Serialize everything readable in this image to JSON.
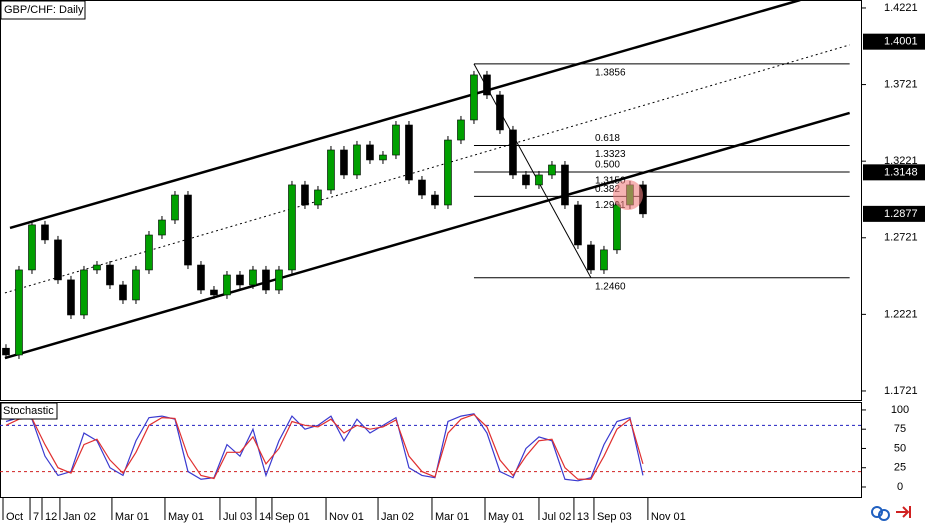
{
  "chart_data": [
    {
      "type": "candlestick",
      "title": "GBP/CHF: Daily",
      "xlim": [
        -0.46,
        65.85
      ],
      "ylim": [
        1.1662,
        1.4273
      ],
      "xticks": [
        {
          "value": -0.23,
          "label": "Oct"
        },
        {
          "value": 1.85,
          "label": "7"
        },
        {
          "value": 2.77,
          "label": "12"
        },
        {
          "value": 4.15,
          "label": "Jan 02"
        },
        {
          "value": 8.15,
          "label": "Mar 01"
        },
        {
          "value": 12.23,
          "label": "May 01"
        },
        {
          "value": 16.46,
          "label": "Jul 03"
        },
        {
          "value": 19.23,
          "label": "14"
        },
        {
          "value": 20.46,
          "label": "Sep 01"
        },
        {
          "value": 24.62,
          "label": "Nov 01"
        },
        {
          "value": 28.62,
          "label": "Jan 02"
        },
        {
          "value": 32.77,
          "label": "Mar 01"
        },
        {
          "value": 36.85,
          "label": "May 01"
        },
        {
          "value": 41,
          "label": "Jul 02"
        },
        {
          "value": 43.69,
          "label": "13"
        },
        {
          "value": 45.23,
          "label": "Sep 03"
        },
        {
          "value": 49.38,
          "label": "Nov 01"
        }
      ],
      "yticks": [
        1.4221,
        1.3721,
        1.3221,
        1.2721,
        1.2221,
        1.1721
      ],
      "price_labels": [
        1.4001,
        1.3148,
        1.2877
      ],
      "up_color": "#00a000",
      "down_color": "#000000",
      "open": [
        1.2,
        1.1956,
        1.2511,
        1.2805,
        1.2707,
        1.2446,
        1.2217,
        1.2511,
        1.2543,
        1.2413,
        1.2315,
        1.2511,
        1.2739,
        1.2837,
        1.3,
        1.2543,
        1.238,
        1.2348,
        1.2478,
        1.2413,
        1.2511,
        1.238,
        1.2511,
        1.3066,
        1.2935,
        1.3033,
        1.3294,
        1.3131,
        1.3327,
        1.3229,
        1.3261,
        1.3457,
        1.3098,
        1.3,
        1.2935,
        1.3359,
        1.349,
        1.3784,
        1.3653,
        1.3425,
        1.3131,
        1.3066,
        1.3131,
        1.3196,
        1.2935,
        1.2674,
        1.2511,
        1.2642,
        1.2935,
        1.3066
      ],
      "close": [
        1.1956,
        1.2511,
        1.2805,
        1.2707,
        1.2446,
        1.2217,
        1.2511,
        1.2543,
        1.2413,
        1.2315,
        1.2511,
        1.2739,
        1.2837,
        1.3,
        1.2543,
        1.238,
        1.2348,
        1.2478,
        1.2413,
        1.2511,
        1.238,
        1.2511,
        1.3066,
        1.2935,
        1.3033,
        1.3294,
        1.3131,
        1.3327,
        1.3229,
        1.3261,
        1.3457,
        1.3098,
        1.3,
        1.2935,
        1.3359,
        1.349,
        1.3784,
        1.3653,
        1.3425,
        1.3131,
        1.3066,
        1.3131,
        1.3196,
        1.2935,
        1.2674,
        1.2511,
        1.2642,
        1.2935,
        1.3066,
        1.2877
      ],
      "trend_lines": [
        {
          "x": [
            0.31,
            61.1
          ],
          "y": [
            1.2785,
            1.4273
          ],
          "style": "solid"
        },
        {
          "x": [
            -0.08,
            64.9
          ],
          "y": [
            1.1936,
            1.3536
          ],
          "style": "solid"
        },
        {
          "x": [
            -0.08,
            64.9
          ],
          "y": [
            1.2361,
            1.398
          ],
          "style": "dotted"
        },
        {
          "x": [
            36,
            45
          ],
          "y": [
            1.3856,
            1.246
          ],
          "style": "thin"
        }
      ],
      "horizontal_lines": [
        {
          "x": [
            36,
            64.9
          ],
          "value": 1.3856
        },
        {
          "x": [
            36,
            64.9
          ],
          "value": {
            "value": 1.246,
            "label": "1.2460"
          }
        }
      ],
      "fibonacci": {
        "x": [
          36,
          64.9
        ],
        "levels": [
          {
            "ratio": "0.618",
            "price": 1.3323
          },
          {
            "ratio": "0.500",
            "price": {
              "value": 1.315,
              "label": "1.3150"
            }
          },
          {
            "ratio": "0.382",
            "price": 1.2991
          }
        ]
      }
    },
    {
      "type": "line",
      "title": "Stochastic",
      "xlim": [
        -0.46,
        65.85
      ],
      "ylim": [
        -13,
        109
      ],
      "yticks": [
        100,
        75,
        50,
        25,
        0
      ],
      "levels": [
        80,
        20
      ],
      "level_colors": [
        "#2020c0",
        "#d02020"
      ],
      "series": [
        {
          "color": "#3a3ad0",
          "values": [
            85,
            90,
            88,
            40,
            15,
            20,
            70,
            60,
            25,
            15,
            60,
            90,
            92,
            88,
            20,
            10,
            12,
            55,
            40,
            75,
            15,
            60,
            92,
            75,
            80,
            92,
            60,
            88,
            70,
            80,
            90,
            25,
            15,
            12,
            85,
            92,
            95,
            70,
            20,
            12,
            50,
            65,
            60,
            10,
            8,
            12,
            55,
            85,
            90,
            15
          ]
        },
        {
          "color": "#e03030",
          "values": [
            80,
            88,
            89,
            55,
            25,
            18,
            55,
            62,
            35,
            18,
            45,
            80,
            90,
            89,
            40,
            15,
            11,
            45,
            45,
            65,
            30,
            50,
            85,
            80,
            78,
            88,
            70,
            80,
            75,
            78,
            87,
            40,
            20,
            13,
            70,
            88,
            94,
            78,
            35,
            15,
            40,
            60,
            62,
            25,
            10,
            10,
            40,
            75,
            88,
            30
          ]
        }
      ]
    }
  ]
}
